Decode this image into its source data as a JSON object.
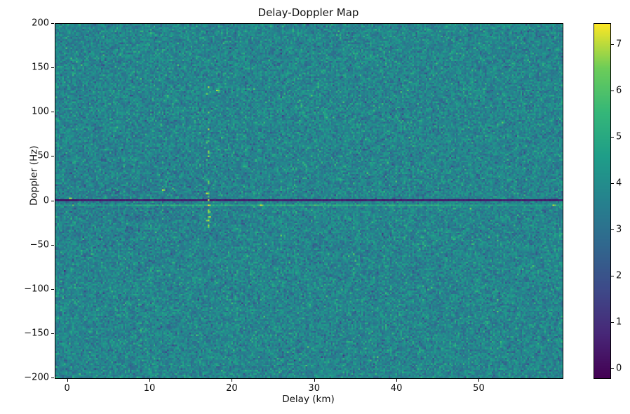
{
  "figure": {
    "background": "#ffffff",
    "text_color": "#111111"
  },
  "chart_data": {
    "type": "heatmap",
    "title": "Delay-Doppler Map",
    "xlabel": "Delay (km)",
    "ylabel": "Doppler (Hz)",
    "x_range": [
      -1.5,
      60.1
    ],
    "y_range": [
      -200,
      200
    ],
    "x_ticks": [
      {
        "v": 0,
        "label": "0"
      },
      {
        "v": 10,
        "label": "10"
      },
      {
        "v": 20,
        "label": "20"
      },
      {
        "v": 30,
        "label": "30"
      },
      {
        "v": 40,
        "label": "40"
      },
      {
        "v": 50,
        "label": "50"
      }
    ],
    "y_ticks": [
      {
        "v": 200,
        "label": "200"
      },
      {
        "v": 150,
        "label": "150"
      },
      {
        "v": 100,
        "label": "100"
      },
      {
        "v": 50,
        "label": "50"
      },
      {
        "v": 0,
        "label": "0"
      },
      {
        "v": -50,
        "label": "−50"
      },
      {
        "v": -100,
        "label": "−100"
      },
      {
        "v": -150,
        "label": "−150"
      },
      {
        "v": -200,
        "label": "−200"
      }
    ],
    "grid": {
      "cols": 300,
      "rows": 210
    },
    "colormap": {
      "name": "viridis",
      "stops": [
        [
          0.0,
          "#440154"
        ],
        [
          0.125,
          "#482878"
        ],
        [
          0.25,
          "#3e4a89"
        ],
        [
          0.375,
          "#31688e"
        ],
        [
          0.5,
          "#26828e"
        ],
        [
          0.625,
          "#1f9e89"
        ],
        [
          0.75,
          "#35b779"
        ],
        [
          0.875,
          "#6dcd59"
        ],
        [
          1.0,
          "#fde725"
        ]
      ]
    },
    "colorbar": {
      "vmin": -0.2,
      "vmax": 7.45,
      "ticks": [
        {
          "v": 0,
          "label": "0"
        },
        {
          "v": 1,
          "label": "1"
        },
        {
          "v": 2,
          "label": "2"
        },
        {
          "v": 3,
          "label": "3"
        },
        {
          "v": 4,
          "label": "4"
        },
        {
          "v": 5,
          "label": "5"
        },
        {
          "v": 6,
          "label": "6"
        },
        {
          "v": 7,
          "label": "7"
        }
      ]
    },
    "noise": {
      "mean": 3.72,
      "std": 0.62,
      "dark_patch": {
        "delay_center": 8,
        "delay_sigma": 16,
        "doppler_sigma": 50,
        "depth": 0.22
      }
    },
    "features": {
      "zero_doppler_dark_line": {
        "doppler_hz": 1,
        "value": 0.15,
        "delay_start_km": -1.5,
        "delay_end_km": 60.1
      },
      "surface_echo_line": {
        "doppler_hz": -4,
        "base_value": 4.4,
        "boost_delay_start_km": 7,
        "boost_delay_end_km": 46,
        "boost_value": 0.55
      },
      "bright_spots": [
        {
          "delay_km": 0.3,
          "doppler_hz": 3,
          "value": 6.9
        },
        {
          "delay_km": 0.6,
          "doppler_hz": -4,
          "value": 6.4
        },
        {
          "delay_km": 11.5,
          "doppler_hz": 12,
          "value": 6.8
        },
        {
          "delay_km": 12.8,
          "doppler_hz": 14,
          "value": 6.3
        },
        {
          "delay_km": 11.6,
          "doppler_hz": -4,
          "value": 6.2
        },
        {
          "delay_km": 17.0,
          "doppler_hz": -4,
          "value": 7.4
        },
        {
          "delay_km": 16.8,
          "doppler_hz": 8,
          "value": 7.0
        },
        {
          "delay_km": 23.5,
          "doppler_hz": -4,
          "value": 7.2
        },
        {
          "delay_km": 30.0,
          "doppler_hz": -5,
          "value": 6.2
        },
        {
          "delay_km": 49.0,
          "doppler_hz": -8,
          "value": 6.5
        },
        {
          "delay_km": 58.9,
          "doppler_hz": -4,
          "value": 7.0
        },
        {
          "delay_km": 18.1,
          "doppler_hz": 125,
          "value": 6.9
        }
      ],
      "vertical_streak": {
        "delay_km": 17,
        "doppler_range_hz": [
          -30,
          135
        ],
        "value_range": [
          5.4,
          7.0
        ],
        "num_dots": 26
      }
    }
  }
}
